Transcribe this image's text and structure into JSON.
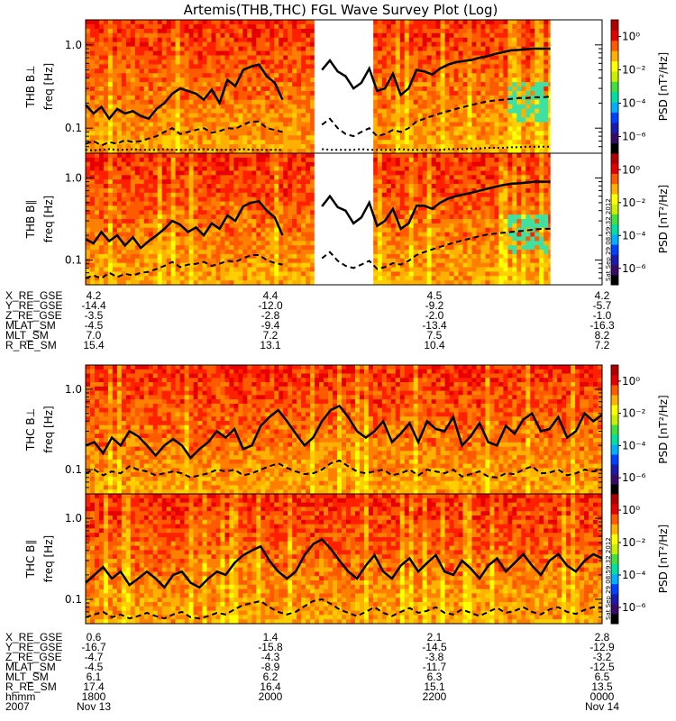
{
  "chart_data": {
    "type": "heatmap",
    "title": "Artemis(THB,THC) FGL Wave Survey Plot (Log)",
    "x_axis": {
      "scale": "linear",
      "grid": false
    },
    "y_axis": {
      "scale": "log",
      "ylim": [
        0.05,
        2.0
      ],
      "tick_values": [
        0.1,
        1.0
      ],
      "tick_labels": [
        "0.1",
        "1.0"
      ]
    },
    "colorbar": {
      "label": "PSD [nT²/Hz]",
      "scale": "log",
      "tick_labels": [
        "10⁰",
        "10⁻²",
        "10⁻⁴",
        "10⁻⁶"
      ],
      "tick_exponents": [
        0,
        -2,
        -4,
        -6
      ],
      "colors": [
        "#000000",
        "#3a0a6b",
        "#1a1ab0",
        "#0040ff",
        "#00b0ff",
        "#00e0a0",
        "#40e040",
        "#c8f000",
        "#ffff00",
        "#ffb000",
        "#ff5a00",
        "#e60000",
        "#b00000"
      ]
    },
    "stamp_label": "Sat Sep 29 08:59:32 2012",
    "panels": [
      {
        "id": "thb-bperp",
        "ylabel": "THB B⊥",
        "ylabel2": "freq [Hz]",
        "data_gap": [
          0.443,
          0.557
        ],
        "data_end": 0.9,
        "series": [
          {
            "style": "solid",
            "values": [
              0.19,
              0.15,
              0.18,
              0.13,
              0.17,
              0.15,
              0.16,
              0.14,
              0.13,
              0.17,
              0.2,
              0.26,
              0.3,
              0.28,
              0.26,
              0.22,
              0.29,
              0.2,
              0.38,
              0.32,
              0.5,
              0.55,
              0.58,
              0.42,
              0.35,
              0.22,
              null,
              null,
              null,
              null,
              0.5,
              0.65,
              0.48,
              0.42,
              0.3,
              0.35,
              0.52,
              0.28,
              0.3,
              0.45,
              0.25,
              0.3,
              0.5,
              0.48,
              0.44,
              0.52,
              0.58,
              0.62,
              0.64,
              0.66,
              0.7,
              0.73,
              0.78,
              0.82,
              0.86,
              0.87,
              0.89,
              0.9,
              0.9,
              0.9
            ]
          },
          {
            "style": "dashed",
            "values": [
              0.065,
              0.07,
              0.062,
              0.068,
              0.065,
              0.072,
              0.068,
              0.07,
              0.075,
              0.08,
              0.09,
              0.1,
              0.085,
              0.09,
              0.095,
              0.1,
              0.088,
              0.092,
              0.1,
              0.098,
              0.11,
              0.12,
              0.12,
              0.1,
              0.095,
              0.09,
              null,
              null,
              null,
              null,
              0.11,
              0.13,
              0.1,
              0.085,
              0.08,
              0.09,
              0.1,
              0.08,
              0.085,
              0.095,
              0.09,
              0.1,
              0.12,
              0.13,
              0.14,
              0.15,
              0.16,
              0.17,
              0.18,
              0.19,
              0.2,
              0.21,
              0.215,
              0.22,
              0.225,
              0.23,
              0.23,
              0.235,
              0.235,
              0.24
            ]
          },
          {
            "style": "dotted",
            "values": [
              0.055,
              0.054,
              0.055,
              0.056,
              0.055,
              0.055,
              0.056,
              0.055,
              0.055,
              0.055,
              0.056,
              0.055,
              0.055,
              0.055,
              0.055,
              0.056,
              0.055,
              0.055,
              0.055,
              0.055,
              0.056,
              0.055,
              0.055,
              0.055,
              0.055,
              0.055,
              null,
              null,
              null,
              null,
              0.056,
              0.055,
              0.055,
              0.055,
              0.055,
              0.056,
              0.055,
              0.055,
              0.055,
              0.055,
              0.056,
              0.055,
              0.055,
              0.055,
              0.055,
              0.055,
              0.056,
              0.056,
              0.056,
              0.057,
              0.057,
              0.058,
              0.058,
              0.058,
              0.059,
              0.059,
              0.06,
              0.06,
              0.06,
              0.06
            ]
          }
        ]
      },
      {
        "id": "thb-bpar",
        "ylabel": "THB B∥",
        "ylabel2": "freq [Hz]",
        "data_gap": [
          0.443,
          0.557
        ],
        "data_end": 0.9,
        "series": [
          {
            "style": "solid",
            "values": [
              0.18,
              0.16,
              0.22,
              0.17,
              0.2,
              0.15,
              0.19,
              0.14,
              0.17,
              0.2,
              0.24,
              0.3,
              0.27,
              0.22,
              0.25,
              0.2,
              0.28,
              0.24,
              0.35,
              0.3,
              0.45,
              0.5,
              0.52,
              0.4,
              0.33,
              0.2,
              null,
              null,
              null,
              null,
              0.45,
              0.6,
              0.44,
              0.4,
              0.28,
              0.33,
              0.5,
              0.26,
              0.3,
              0.42,
              0.24,
              0.28,
              0.46,
              0.46,
              0.42,
              0.5,
              0.56,
              0.6,
              0.63,
              0.66,
              0.7,
              0.74,
              0.78,
              0.82,
              0.85,
              0.86,
              0.88,
              0.9,
              0.9,
              0.9
            ]
          },
          {
            "style": "dashed",
            "values": [
              0.06,
              0.065,
              0.06,
              0.07,
              0.062,
              0.068,
              0.065,
              0.07,
              0.072,
              0.078,
              0.085,
              0.095,
              0.082,
              0.088,
              0.09,
              0.095,
              0.085,
              0.09,
              0.098,
              0.095,
              0.105,
              0.115,
              0.115,
              0.1,
              0.092,
              0.088,
              null,
              null,
              null,
              null,
              0.105,
              0.125,
              0.098,
              0.085,
              0.08,
              0.088,
              0.098,
              0.078,
              0.082,
              0.092,
              0.088,
              0.098,
              0.115,
              0.125,
              0.135,
              0.145,
              0.155,
              0.165,
              0.175,
              0.185,
              0.195,
              0.205,
              0.21,
              0.215,
              0.22,
              0.225,
              0.23,
              0.235,
              0.24,
              0.24
            ]
          }
        ]
      },
      {
        "id": "thc-bperp",
        "ylabel": "THC B⊥",
        "ylabel2": "freq [Hz]",
        "data_gap": null,
        "data_end": 1.0,
        "series": [
          {
            "style": "solid",
            "values": [
              0.2,
              0.22,
              0.16,
              0.25,
              0.2,
              0.3,
              0.26,
              0.2,
              0.15,
              0.2,
              0.24,
              0.2,
              0.14,
              0.18,
              0.22,
              0.3,
              0.25,
              0.32,
              0.18,
              0.2,
              0.35,
              0.45,
              0.55,
              0.4,
              0.28,
              0.2,
              0.25,
              0.4,
              0.55,
              0.62,
              0.45,
              0.3,
              0.25,
              0.3,
              0.4,
              0.22,
              0.28,
              0.38,
              0.22,
              0.4,
              0.32,
              0.3,
              0.45,
              0.2,
              0.26,
              0.38,
              0.22,
              0.2,
              0.35,
              0.28,
              0.42,
              0.5,
              0.3,
              0.32,
              0.45,
              0.25,
              0.3,
              0.5,
              0.4,
              0.48
            ]
          },
          {
            "style": "dashed",
            "values": [
              0.09,
              0.1,
              0.085,
              0.095,
              0.09,
              0.11,
              0.1,
              0.095,
              0.085,
              0.09,
              0.095,
              0.09,
              0.08,
              0.085,
              0.09,
              0.1,
              0.095,
              0.1,
              0.085,
              0.09,
              0.1,
              0.11,
              0.12,
              0.105,
              0.095,
              0.088,
              0.09,
              0.1,
              0.12,
              0.13,
              0.11,
              0.095,
              0.09,
              0.095,
              0.1,
              0.085,
              0.09,
              0.1,
              0.085,
              0.1,
              0.095,
              0.09,
              0.1,
              0.082,
              0.088,
              0.095,
              0.082,
              0.08,
              0.09,
              0.088,
              0.1,
              0.11,
              0.09,
              0.092,
              0.1,
              0.085,
              0.09,
              0.1,
              0.095,
              0.1
            ]
          }
        ]
      },
      {
        "id": "thc-bpar",
        "ylabel": "THC B∥",
        "ylabel2": "freq [Hz]",
        "data_gap": null,
        "data_end": 1.0,
        "series": [
          {
            "style": "solid",
            "values": [
              0.16,
              0.2,
              0.25,
              0.18,
              0.22,
              0.15,
              0.18,
              0.22,
              0.18,
              0.14,
              0.2,
              0.22,
              0.16,
              0.14,
              0.18,
              0.22,
              0.2,
              0.28,
              0.35,
              0.4,
              0.45,
              0.3,
              0.22,
              0.18,
              0.22,
              0.35,
              0.48,
              0.55,
              0.42,
              0.3,
              0.22,
              0.18,
              0.26,
              0.35,
              0.22,
              0.18,
              0.26,
              0.32,
              0.22,
              0.28,
              0.35,
              0.22,
              0.2,
              0.3,
              0.24,
              0.18,
              0.26,
              0.32,
              0.22,
              0.28,
              0.36,
              0.26,
              0.2,
              0.3,
              0.36,
              0.26,
              0.22,
              0.3,
              0.36,
              0.32
            ]
          },
          {
            "style": "dashed",
            "values": [
              0.06,
              0.065,
              0.07,
              0.06,
              0.065,
              0.058,
              0.062,
              0.068,
              0.062,
              0.058,
              0.065,
              0.07,
              0.06,
              0.058,
              0.062,
              0.068,
              0.065,
              0.075,
              0.085,
              0.09,
              0.095,
              0.08,
              0.07,
              0.065,
              0.07,
              0.082,
              0.095,
              0.1,
              0.088,
              0.075,
              0.068,
              0.062,
              0.07,
              0.08,
              0.068,
              0.062,
              0.07,
              0.078,
              0.068,
              0.072,
              0.08,
              0.068,
              0.065,
              0.075,
              0.068,
              0.062,
              0.07,
              0.078,
              0.068,
              0.072,
              0.08,
              0.07,
              0.065,
              0.075,
              0.08,
              0.07,
              0.066,
              0.074,
              0.08,
              0.078
            ]
          }
        ]
      }
    ],
    "ephemeris_top": {
      "rows": [
        {
          "label": "X_RE_GSE",
          "values": [
            "4.2",
            "4.4",
            "4.5",
            "4.2"
          ]
        },
        {
          "label": "Y_RE_GSE",
          "values": [
            "-14.4",
            "-12.0",
            "-9.2",
            "-5.7"
          ]
        },
        {
          "label": "Z_RE_GSE",
          "values": [
            "-3.5",
            "-2.8",
            "-2.0",
            "-1.0"
          ]
        },
        {
          "label": "MLAT_SM",
          "values": [
            "-4.5",
            "-9.4",
            "-13.4",
            "-16.3"
          ]
        },
        {
          "label": "MLT_SM",
          "values": [
            "7.0",
            "7.2",
            "7.5",
            "8.2"
          ]
        },
        {
          "label": "R_RE_SM",
          "values": [
            "15.4",
            "13.1",
            "10.4",
            "7.2"
          ]
        }
      ]
    },
    "ephemeris_bottom": {
      "rows": [
        {
          "label": "X_RE_GSE",
          "values": [
            "0.6",
            "1.4",
            "2.1",
            "2.8"
          ]
        },
        {
          "label": "Y_RE_GSE",
          "values": [
            "-16.7",
            "-15.8",
            "-14.5",
            "-12.9"
          ]
        },
        {
          "label": "Z_RE_GSE",
          "values": [
            "-4.7",
            "-4.3",
            "-3.8",
            "-3.2"
          ]
        },
        {
          "label": "MLAT_SM",
          "values": [
            "-4.5",
            "-8.9",
            "-11.7",
            "-12.5"
          ]
        },
        {
          "label": "MLT_SM",
          "values": [
            "6.1",
            "6.2",
            "6.3",
            "6.5"
          ]
        },
        {
          "label": "R_RE_SM",
          "values": [
            "17.4",
            "16.4",
            "15.1",
            "13.5"
          ]
        },
        {
          "label": "hhmm",
          "values": [
            "1800",
            "2000",
            "2200",
            "0000"
          ]
        }
      ],
      "date_row": {
        "year": "2007",
        "start": "Nov 13",
        "end": "Nov 14"
      }
    }
  }
}
